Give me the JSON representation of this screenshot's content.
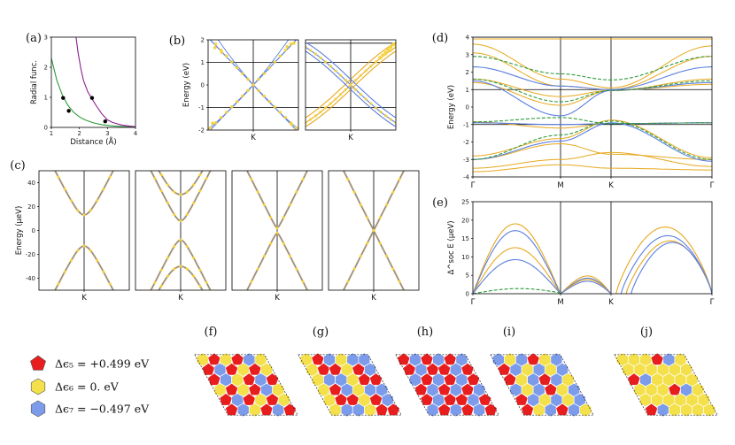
{
  "colors": {
    "gold": "#E6A81E",
    "dotgold": "#F5D33C",
    "blue": "#5B7FE0",
    "green": "#2E9B3A",
    "purple": "#8E1E8E",
    "red": "#E81E1E",
    "yellow": "#F4E04A",
    "hexblue": "#7C9CEB",
    "black": "#000000"
  },
  "chart_data": [
    {
      "id": "a",
      "panel_label": "(a)",
      "type": "line",
      "xlabel": "Distance  (Å)",
      "ylabel": "Radial func.",
      "xlim": [
        1,
        4
      ],
      "ylim": [
        0,
        3
      ],
      "xticks": [
        "1",
        "2",
        "3",
        "4"
      ],
      "yticks": [
        "0",
        "1",
        "2",
        "3"
      ],
      "series": [
        {
          "color": "green",
          "x": [
            1.0,
            1.2,
            1.4,
            1.6,
            1.8,
            2.0,
            2.2,
            2.5,
            2.8,
            3.1,
            3.4,
            3.7,
            4.0
          ],
          "y": [
            2.3,
            1.55,
            1.05,
            0.72,
            0.5,
            0.35,
            0.25,
            0.15,
            0.09,
            0.055,
            0.035,
            0.02,
            0.01
          ]
        },
        {
          "color": "purple",
          "x": [
            1.88,
            1.95,
            2.05,
            2.15,
            2.3,
            2.45,
            2.6,
            2.8,
            3.0,
            3.2,
            3.5,
            3.8,
            4.0
          ],
          "y": [
            3.0,
            2.5,
            1.95,
            1.55,
            1.18,
            0.95,
            0.72,
            0.45,
            0.25,
            0.16,
            0.08,
            0.04,
            0.02
          ]
        }
      ],
      "markers": {
        "x": [
          1.42,
          1.62,
          2.45,
          2.92
        ],
        "y": [
          0.98,
          0.55,
          0.98,
          0.2
        ]
      }
    },
    {
      "id": "b1",
      "panel_label": "(b)",
      "type": "line",
      "ylabel": "Energy (eV)",
      "xlim": [
        -1,
        1
      ],
      "ylim": [
        -2,
        2
      ],
      "yticks": [
        "-2",
        "-1",
        "0",
        "1",
        "2"
      ],
      "xticks": [
        "K"
      ],
      "hlines": [
        1,
        -1
      ],
      "vline": 0
    },
    {
      "id": "b2",
      "type": "line",
      "xlim": [
        -1,
        1
      ],
      "ylim": [
        -2,
        2
      ],
      "xticks": [
        "K"
      ],
      "hlines": [
        1,
        -1,
        1.85
      ],
      "vline": 0
    },
    {
      "id": "c",
      "panel_label": "(c)",
      "type": "line",
      "ylabel": "Energy (μeV)",
      "ylim": [
        -50,
        50
      ],
      "yticks": [
        "-40",
        "-20",
        "0",
        "20",
        "40"
      ],
      "subpanels": [
        {
          "xtick": "K",
          "gaps": [
            13,
            13
          ]
        },
        {
          "xtick": "K",
          "gaps": [
            8,
            30
          ]
        },
        {
          "xtick": "K",
          "gaps": [
            2,
            2
          ]
        },
        {
          "xtick": "K",
          "gaps": [
            0,
            0
          ]
        }
      ]
    },
    {
      "id": "d",
      "panel_label": "(d)",
      "type": "line",
      "ylabel": "Energy (eV)",
      "ylim": [
        -4,
        4
      ],
      "yticks": [
        "-4",
        "-3",
        "-2",
        "-1",
        "0",
        "1",
        "2",
        "3",
        "4"
      ],
      "xticks": [
        "Γ",
        "M",
        "K",
        "Γ"
      ],
      "hlines": [
        1,
        -1
      ]
    },
    {
      "id": "e",
      "panel_label": "(e)",
      "type": "line",
      "ylabel": "Δ^soc E (μeV)",
      "ylim": [
        0,
        25
      ],
      "yticks": [
        "0",
        "5",
        "10",
        "15",
        "20",
        "25"
      ],
      "xticks": [
        "Γ",
        "M",
        "K",
        "Γ"
      ],
      "series": [
        {
          "color": "gold",
          "peak1": 20.5,
          "peak2": 4,
          "peak3": 19
        },
        {
          "color": "blue",
          "peak1": 18.5,
          "peak2": 3.5,
          "peak3": 16.5
        },
        {
          "color": "gold",
          "peak1": 13.5,
          "peak2": 3.2,
          "peak3": 15
        },
        {
          "color": "blue",
          "peak1": 10,
          "peak2": 2.8,
          "peak3": 14.5
        }
      ]
    }
  ],
  "lattices": [
    {
      "label": "(f)",
      "pattern": [
        1,
        0,
        1,
        0,
        2,
        1,
        0,
        2,
        0
      ]
    },
    {
      "label": "(g)",
      "pattern": [
        1,
        0,
        2,
        1,
        2,
        2,
        1,
        0,
        0
      ]
    },
    {
      "label": "(h)",
      "pattern": [
        0,
        2,
        0,
        2,
        0,
        2,
        0,
        2,
        0
      ]
    },
    {
      "label": "(i)",
      "pattern": [
        2,
        1,
        2,
        0,
        1,
        2,
        0,
        2,
        1
      ]
    },
    {
      "label": "(j)",
      "pattern": [
        1,
        1,
        1,
        0,
        2,
        1,
        1,
        1,
        1
      ]
    }
  ],
  "legend": [
    {
      "color": "red",
      "shape": "pentagon",
      "text": "Δϵ₅ = +0.499 eV"
    },
    {
      "color": "yellow",
      "shape": "hexagon",
      "text": "Δϵ₆ = 0. eV"
    },
    {
      "color": "hexblue",
      "shape": "hexagon",
      "text": "Δϵ₇ = −0.497 eV"
    }
  ]
}
